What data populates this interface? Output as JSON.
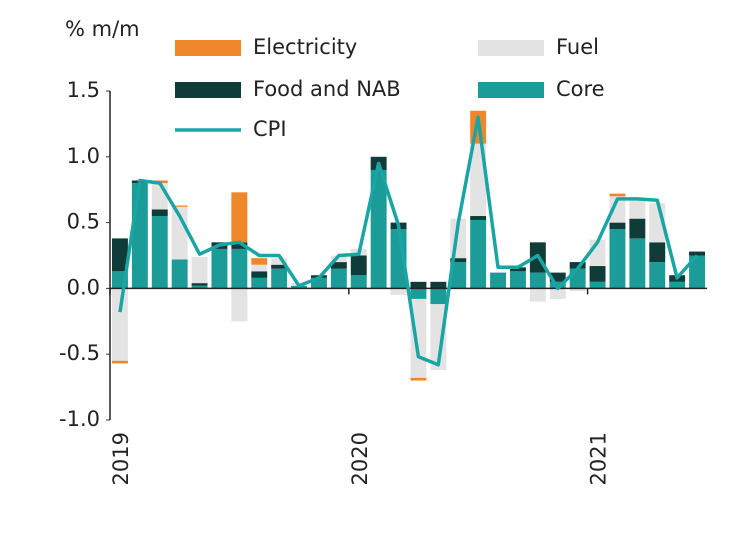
{
  "chart_data": {
    "type": "stacked-bar-line",
    "title": "% m/m",
    "categories": [
      "2019",
      null,
      null,
      null,
      null,
      null,
      null,
      null,
      null,
      null,
      null,
      null,
      "2020",
      null,
      null,
      null,
      null,
      null,
      null,
      null,
      null,
      null,
      null,
      null,
      "2021",
      null,
      null,
      null,
      null,
      null
    ],
    "series": [
      {
        "name": "Core",
        "type": "bar",
        "color": "#1b9c98",
        "values": [
          0.13,
          0.8,
          0.55,
          0.22,
          0.02,
          0.3,
          0.3,
          0.08,
          0.15,
          0.02,
          0.08,
          0.15,
          0.1,
          0.9,
          0.45,
          -0.08,
          -0.12,
          0.2,
          0.52,
          0.12,
          0.13,
          0.12,
          0.05,
          0.15,
          0.05,
          0.45,
          0.38,
          0.2,
          0.05,
          0.25
        ]
      },
      {
        "name": "Food and NAB",
        "type": "bar",
        "color": "#0f3b38",
        "values": [
          0.25,
          0.02,
          0.05,
          0.0,
          0.02,
          0.05,
          0.05,
          0.05,
          0.03,
          0.0,
          0.02,
          0.05,
          0.15,
          0.1,
          0.05,
          0.05,
          0.05,
          0.03,
          0.03,
          0.0,
          0.03,
          0.23,
          0.07,
          0.05,
          0.12,
          0.05,
          0.15,
          0.15,
          0.05,
          0.03
        ]
      },
      {
        "name": "Fuel",
        "type": "bar",
        "color": "#e3e3e3",
        "values": [
          -0.55,
          0.0,
          0.2,
          0.4,
          0.2,
          0.0,
          -0.25,
          0.05,
          0.05,
          0.02,
          0.0,
          0.05,
          0.05,
          0.0,
          -0.05,
          -0.6,
          -0.5,
          0.3,
          0.55,
          0.0,
          0.0,
          -0.1,
          -0.08,
          -0.02,
          0.2,
          0.2,
          0.15,
          0.3,
          0.0,
          0.0
        ]
      },
      {
        "name": "Electricity",
        "type": "bar",
        "color": "#f0862a",
        "values": [
          -0.02,
          0.0,
          0.02,
          0.01,
          0.0,
          0.0,
          0.38,
          0.05,
          0.0,
          0.0,
          0.0,
          0.0,
          0.0,
          0.0,
          0.0,
          -0.02,
          0.0,
          0.0,
          0.25,
          0.0,
          0.0,
          0.0,
          0.0,
          0.0,
          0.0,
          0.02,
          0.0,
          0.0,
          0.0,
          0.0
        ]
      },
      {
        "name": "CPI",
        "type": "line",
        "color": "#1aa5a5",
        "values": [
          -0.18,
          0.82,
          0.8,
          0.55,
          0.26,
          0.33,
          0.35,
          0.25,
          0.25,
          0.02,
          0.08,
          0.25,
          0.26,
          0.95,
          0.48,
          -0.52,
          -0.58,
          0.5,
          1.3,
          0.16,
          0.16,
          0.25,
          0.0,
          0.15,
          0.35,
          0.68,
          0.68,
          0.67,
          0.08,
          0.25
        ]
      }
    ],
    "ylim": [
      -1,
      1.5
    ],
    "yticks": [
      1.5,
      {
        "value": 1,
        "label": "1.0"
      },
      0.5,
      {
        "value": 0,
        "label": "0.0"
      },
      -0.5,
      {
        "value": -1,
        "label": "-1.0"
      }
    ]
  }
}
